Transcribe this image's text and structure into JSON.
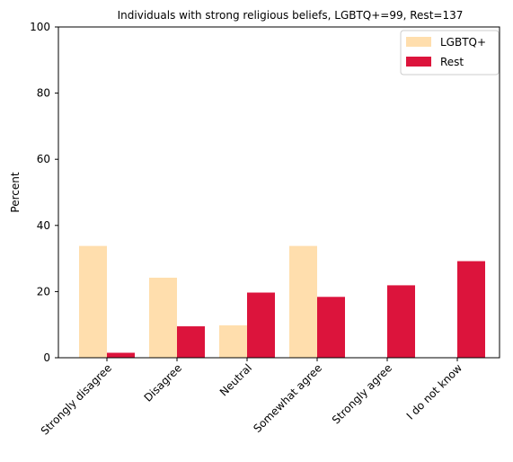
{
  "chart_data": {
    "type": "bar",
    "title": "Individuals with strong religious beliefs, LGBTQ+=99, Rest=137",
    "xlabel": "",
    "ylabel": "Percent",
    "ylim": [
      0,
      100
    ],
    "yticks": [
      "0",
      "20",
      "40",
      "60",
      "80",
      "100"
    ],
    "categories": [
      "Strongly disagree",
      "Disagree",
      "Neutral",
      "Somewhat agree",
      "Strongly agree",
      "I do not know"
    ],
    "series": [
      {
        "name": "LGBTQ+",
        "color": "#FFDEAD",
        "values": [
          33.8,
          24.2,
          9.8,
          33.8,
          0,
          0
        ]
      },
      {
        "name": "Rest",
        "color": "#DC143C",
        "values": [
          1.5,
          9.5,
          19.7,
          18.4,
          21.9,
          29.2
        ]
      }
    ],
    "legend_position": "top-right",
    "grid": false
  }
}
